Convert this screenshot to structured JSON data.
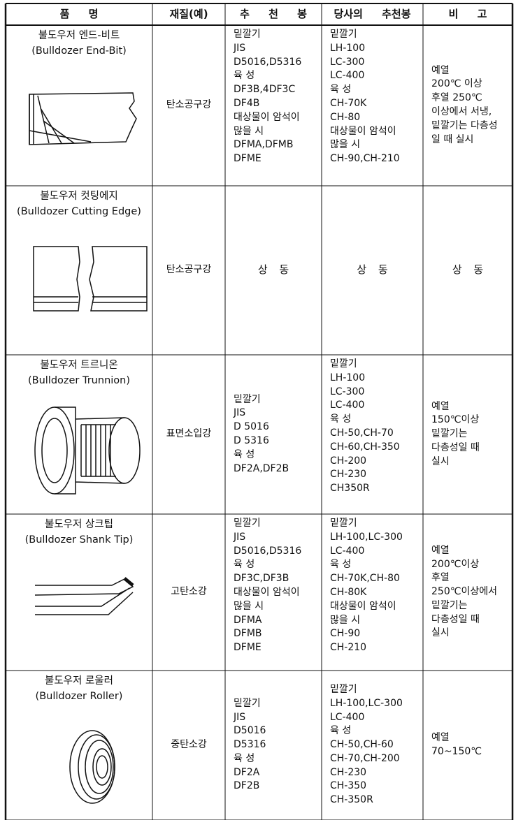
{
  "table": {
    "header": [
      "품 명",
      "재질(예)",
      "추 천 봉",
      "당사의 추천봉",
      "비 고"
    ],
    "rows": [
      {
        "name": "불도우저 엔드-비트",
        "name_en": "(Bulldozer End-Bit)",
        "material": "탄소공구강",
        "recommended": [
          "밑깔기",
          "JIS",
          "D5016,D5316",
          "육 성",
          "DF3B,4DF3C",
          "DF4B",
          "대상물이 암석이",
          "많을 시",
          "DFMA,DFMB",
          "DFME"
        ],
        "company": [
          "밑깔기",
          "LH-100",
          "LC-300",
          "LC-400",
          "육 성",
          "CH-70K",
          "CH-80",
          "대상물이 암석이",
          "많을 시",
          "CH-90,CH-210"
        ],
        "remarks": [
          "예열",
          "200℃ 이상",
          "후열 250℃",
          "이상에서 서냉,",
          "밑깔기는 다층성",
          "일 때 실시"
        ]
      },
      {
        "name": "불도우저 컷팅에지",
        "name_en": "(Bulldozer Cutting Edge)",
        "material": "탄소공구강",
        "recommended": [
          "상 동"
        ],
        "company": [
          "상 동"
        ],
        "remarks": [
          "상 동"
        ]
      },
      {
        "name": "불도우저 트르니온",
        "name_en": "(Bulldozer Trunnion)",
        "material": "표면소입강",
        "recommended": [
          "밑깔기",
          "JIS",
          "D 5016",
          "D 5316",
          "육 성",
          "DF2A,DF2B"
        ],
        "company": [
          "밑깔기",
          "LH-100",
          "LC-300",
          "LC-400",
          "육 성",
          "CH-50,CH-70",
          "CH-60,CH-350",
          "CH-200",
          "CH-230",
          "CH350R"
        ],
        "remarks": [
          "예열",
          "150℃이상",
          "밑깔기는",
          "다층성일 때",
          "실시"
        ]
      },
      {
        "name": "불도우저 상크팁",
        "name_en": "(Bulldozer Shank Tip)",
        "material": "고탄소강",
        "recommended": [
          "밑깔기",
          "JIS",
          "D5016,D5316",
          "육 성",
          "DF3C,DF3B",
          "대상물이 암석이",
          "많을 시",
          "DFMA",
          "DFMB",
          "DFME"
        ],
        "company": [
          "밑깔기",
          "LH-100,LC-300",
          "LC-400",
          "육 성",
          "CH-70K,CH-80",
          "CH-80K",
          "대상물이 암석이",
          "많을 시",
          "CH-90",
          "CH-210"
        ],
        "remarks": [
          "예열",
          "200℃이상",
          "후열",
          "250℃이상에서",
          "밑깔기는",
          "다층성일 때",
          "실시"
        ]
      },
      {
        "name": "불도우저 로울러",
        "name_en": "(Bulldozer Roller)",
        "material": "중탄소강",
        "recommended": [
          "밑깔기",
          "JIS",
          "D5016",
          "D5316",
          "육 성",
          "DF2A",
          "DF2B"
        ],
        "company": [
          "밑깔기",
          "LH-100,LC-300",
          "LC-400",
          "육 성",
          "CH-50,CH-60",
          "CH-70,CH-200",
          "CH-230",
          "CH-350",
          "CH-350R"
        ],
        "remarks": [
          "예열",
          "70~150℃"
        ]
      }
    ]
  }
}
